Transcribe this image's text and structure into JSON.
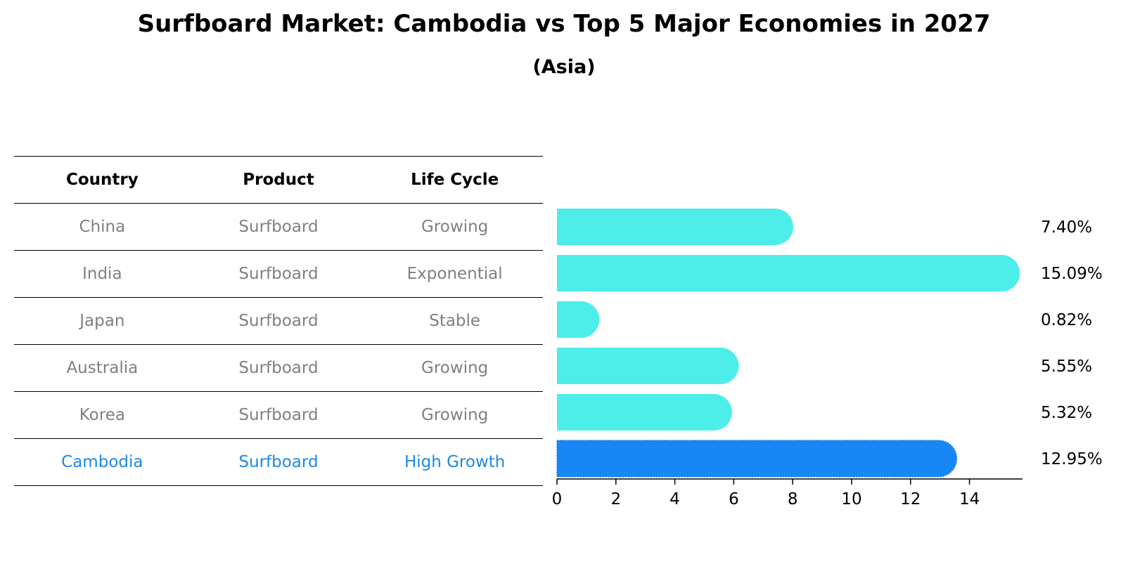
{
  "chart_data": {
    "type": "bar",
    "orientation": "horizontal",
    "title": "Surfboard Market: Cambodia vs Top 5 Major Economies in 2027",
    "subtitle": "(Asia)",
    "categories": [
      "China",
      "India",
      "Japan",
      "Australia",
      "Korea",
      "Cambodia"
    ],
    "values": [
      7.4,
      15.09,
      0.82,
      5.55,
      5.32,
      12.95
    ],
    "value_labels": [
      "7.40%",
      "15.09%",
      "0.82%",
      "5.55%",
      "5.32%",
      "12.95%"
    ],
    "xlim": [
      0,
      15.8
    ],
    "xticks": [
      0,
      2,
      4,
      6,
      8,
      10,
      12,
      14
    ],
    "xlabel": "",
    "ylabel": "",
    "highlight_index": 5,
    "colors": {
      "bar": "#4deeea",
      "highlight_bar": "#1787f5",
      "highlight_text": "#1e88e5",
      "muted_text": "#808080"
    }
  },
  "table": {
    "headers": [
      "Country",
      "Product",
      "Life Cycle"
    ],
    "rows": [
      {
        "country": "China",
        "product": "Surfboard",
        "life_cycle": "Growing"
      },
      {
        "country": "India",
        "product": "Surfboard",
        "life_cycle": "Exponential"
      },
      {
        "country": "Japan",
        "product": "Surfboard",
        "life_cycle": "Stable"
      },
      {
        "country": "Australia",
        "product": "Surfboard",
        "life_cycle": "Growing"
      },
      {
        "country": "Korea",
        "product": "Surfboard",
        "life_cycle": "Growing"
      },
      {
        "country": "Cambodia",
        "product": "Surfboard",
        "life_cycle": "High Growth"
      }
    ]
  }
}
